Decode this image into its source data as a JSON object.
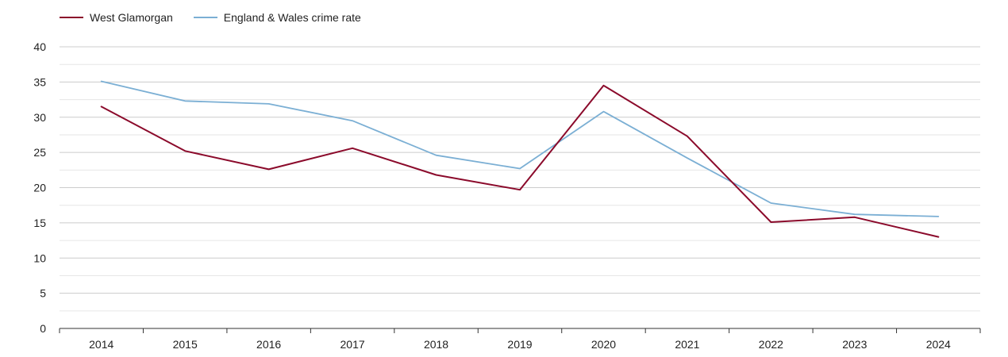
{
  "legend": [
    {
      "name": "West Glamorgan",
      "color": "#8b0a2b"
    },
    {
      "name": "England & Wales crime rate",
      "color": "#7bafd4"
    }
  ],
  "chart_data": {
    "type": "line",
    "title": "",
    "xlabel": "",
    "ylabel": "",
    "x": [
      "2014",
      "2015",
      "2016",
      "2017",
      "2018",
      "2019",
      "2020",
      "2021",
      "2022",
      "2023",
      "2024"
    ],
    "ylim": [
      0,
      40
    ],
    "y_ticks": [
      0,
      5,
      10,
      15,
      20,
      25,
      30,
      35,
      40
    ],
    "grid": true,
    "legend_position": "top-left",
    "series": [
      {
        "name": "West Glamorgan",
        "color": "#8b0a2b",
        "values": [
          31.5,
          25.2,
          22.6,
          25.6,
          21.8,
          19.7,
          34.5,
          27.3,
          15.1,
          15.8,
          13.0
        ]
      },
      {
        "name": "England & Wales crime rate",
        "color": "#7bafd4",
        "values": [
          35.1,
          32.3,
          31.9,
          29.5,
          24.6,
          22.7,
          30.8,
          24.2,
          17.8,
          16.2,
          15.9
        ]
      }
    ]
  }
}
